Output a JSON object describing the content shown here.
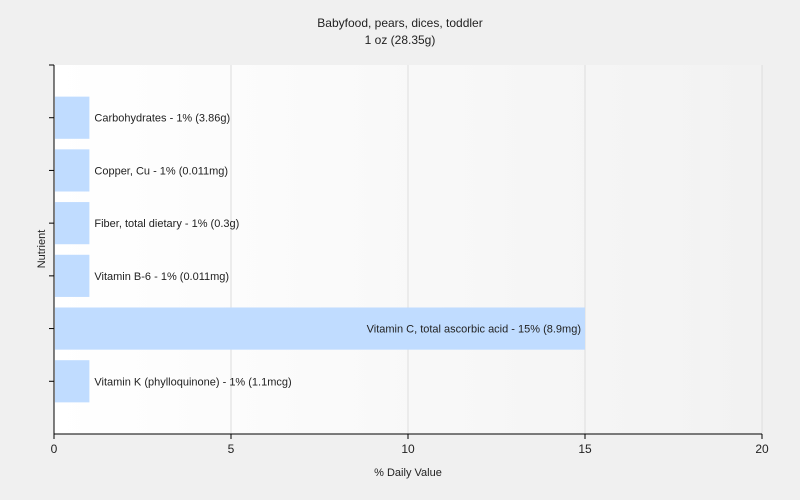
{
  "chart_data": {
    "type": "bar",
    "orientation": "horizontal",
    "title": "Babyfood, pears, dices, toddler",
    "subtitle": "1 oz (28.35g)",
    "xlabel": "% Daily Value",
    "ylabel": "Nutrient",
    "xlim": [
      0,
      20
    ],
    "xticks": [
      0,
      5,
      10,
      15,
      20
    ],
    "grid": true,
    "categories": [
      "Carbohydrates",
      "Copper, Cu",
      "Fiber, total dietary",
      "Vitamin B-6",
      "Vitamin C, total ascorbic acid",
      "Vitamin K (phylloquinone)"
    ],
    "values": [
      1,
      1,
      1,
      1,
      15,
      1
    ],
    "data_labels": [
      "Carbohydrates - 1% (3.86g)",
      "Copper, Cu - 1% (0.011mg)",
      "Fiber, total dietary - 1% (0.3g)",
      "Vitamin B-6 - 1% (0.011mg)",
      "Vitamin C, total ascorbic acid - 15% (8.9mg)",
      "Vitamin K (phylloquinone) - 1% (1.1mcg)"
    ],
    "bar_color": "#c0dcff"
  }
}
